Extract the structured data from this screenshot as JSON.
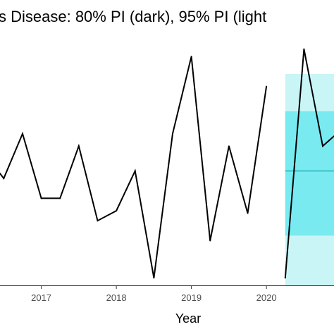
{
  "chart_data": {
    "type": "line",
    "title": "s Disease: 80% PI (dark), 95% PI (light",
    "xlabel": "Year",
    "ylabel": "",
    "x_ticks": [
      "2017",
      "2018",
      "2019",
      "2020"
    ],
    "xlim": [
      2016.45,
      2020.9
    ],
    "ylim": [
      0,
      10
    ],
    "grid": false,
    "series": [
      {
        "role": "observed",
        "color": "#000000",
        "x": [
          2016.45,
          2016.5,
          2016.75,
          2017.0,
          2017.25,
          2017.5,
          2017.75,
          2018.0,
          2018.25,
          2018.5,
          2018.75,
          2019.0,
          2019.25,
          2019.5,
          2019.75,
          2020.0
        ],
        "y": [
          4.5,
          4.3,
          6.1,
          3.5,
          3.5,
          5.6,
          2.6,
          3.0,
          4.6,
          0.3,
          6.1,
          9.2,
          1.8,
          5.6,
          2.9,
          8.0
        ]
      },
      {
        "role": "forecast",
        "color": "#000000",
        "x": [
          2020.25,
          2020.5,
          2020.75,
          2020.9
        ],
        "y": [
          0.3,
          9.5,
          5.6,
          6.0
        ]
      }
    ],
    "forecast_mean": {
      "x": [
        2020.25,
        2020.9
      ],
      "y": [
        4.6,
        4.6
      ],
      "color": "#2bb5b8"
    },
    "intervals": [
      {
        "level": "95%",
        "x": [
          2020.25,
          2020.9
        ],
        "lower": 0.0,
        "upper": 8.5,
        "color": "#c9f5f7"
      },
      {
        "level": "80%",
        "x": [
          2020.25,
          2020.9
        ],
        "lower": 2.0,
        "upper": 7.0,
        "color": "#79eaf0"
      }
    ]
  }
}
